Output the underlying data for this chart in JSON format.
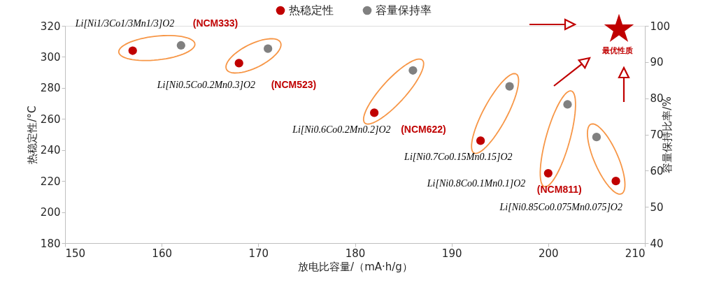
{
  "chart_data": {
    "type": "scatter",
    "xlabel": "放电比容量/（mA·h/g）",
    "ylabel": "热稳定性/°C",
    "y2label": "容量保持比率/%",
    "xlim": [
      150,
      210
    ],
    "xticks": [
      150,
      160,
      170,
      180,
      190,
      200,
      210
    ],
    "ylim": [
      180,
      320
    ],
    "yticks": [
      180,
      200,
      220,
      240,
      260,
      280,
      300,
      320
    ],
    "y2lim": [
      40,
      100
    ],
    "y2ticks": [
      40,
      50,
      60,
      70,
      80,
      90,
      100
    ],
    "series": [
      {
        "name": "热稳定性",
        "color": "#c00000",
        "x": [
          157,
          168,
          182,
          193,
          200,
          207
        ],
        "values": [
          304,
          296,
          264,
          246,
          225,
          220
        ]
      },
      {
        "name": "容量保持率",
        "color": "#808080",
        "axis": "y2",
        "x": [
          162,
          171,
          186,
          196,
          202,
          205
        ],
        "values": [
          94.6,
          93.7,
          87.7,
          83.3,
          78.3,
          69.3
        ]
      }
    ],
    "annotations": [
      {
        "text": "Li[Ni1/3Co1/3Mn1/3]O2",
        "x": 157,
        "y": 304
      },
      "(NCM333)",
      {
        "text": "Li[Ni0.5Co0.2Mn0.3]O2",
        "x": 168,
        "y": 296
      },
      "(NCM523)",
      {
        "text": "Li[Ni0.6Co0.2Mn0.2]O2",
        "x": 182,
        "y": 264
      },
      "(NCM622)",
      {
        "text": "Li[Ni0.7Co0.15Mn0.15]O2",
        "x": 193,
        "y": 246
      },
      {
        "text": "Li[Ni0.8Co0.1Mn0.1]O2",
        "x": 200,
        "y": 225
      },
      "(NCM811)",
      {
        "text": "Li[Ni0.85Co0.075Mn0.075]O2",
        "x": 207,
        "y": 220
      },
      "最优性质"
    ],
    "legend": "top",
    "marker": "circle",
    "grid": false
  }
}
